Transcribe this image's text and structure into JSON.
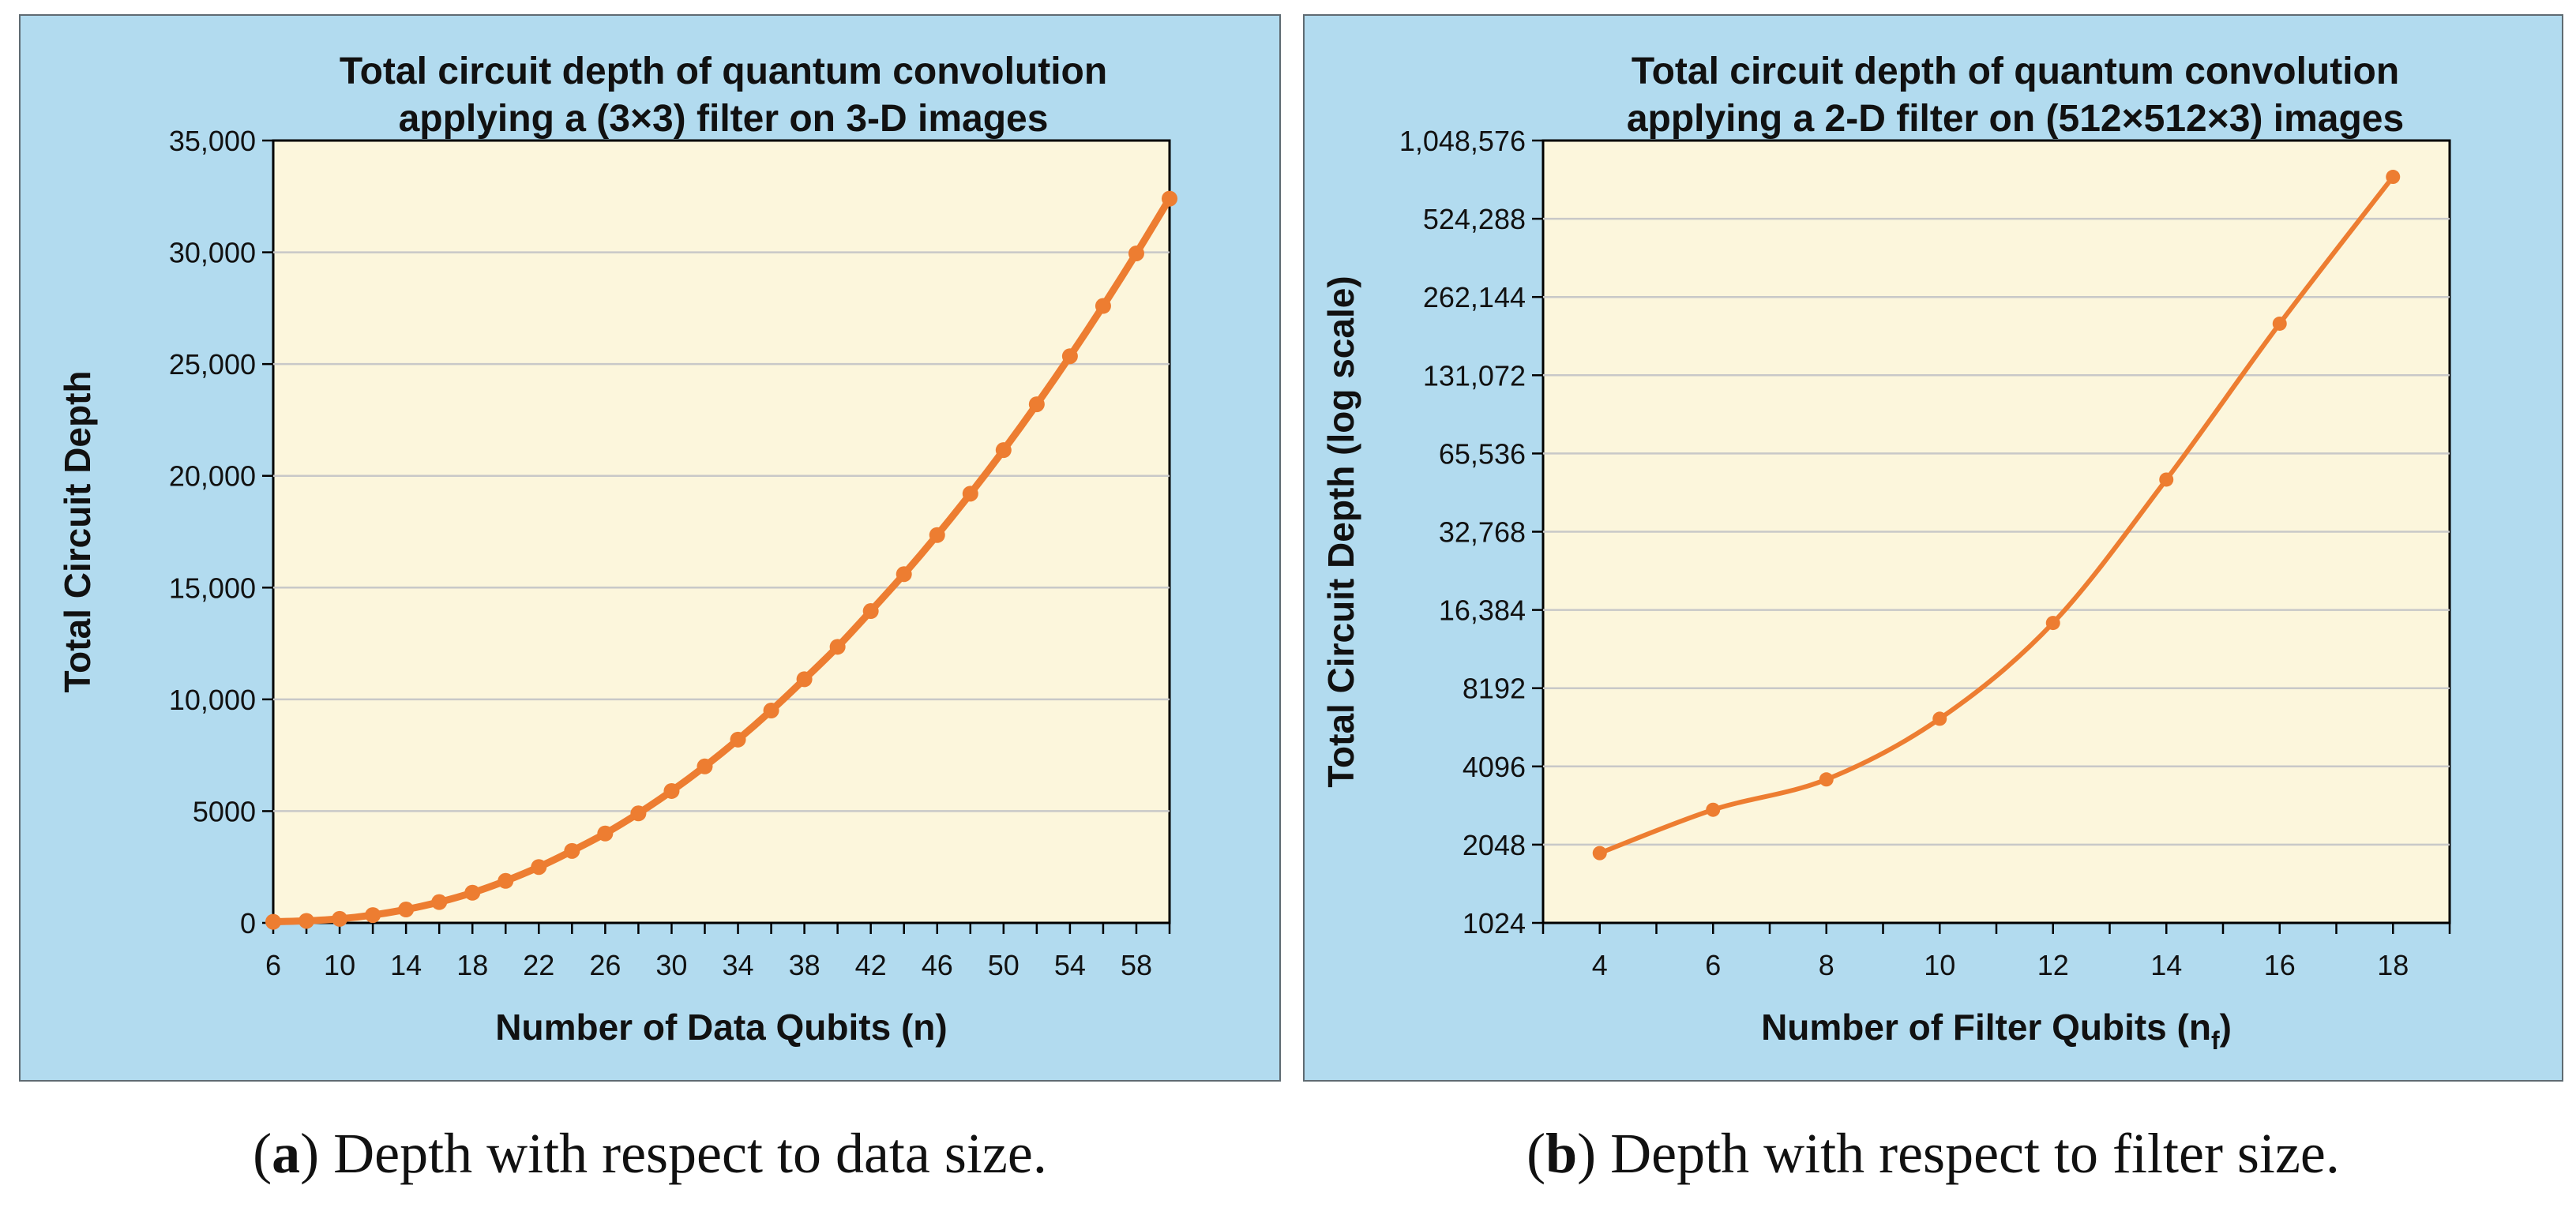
{
  "colors": {
    "line": "#ed7d31",
    "plot_bg": "#fcf6dc",
    "panel_bg": "#b2dbef",
    "grid": "#c8c8c8"
  },
  "chart_data": [
    {
      "type": "line",
      "title": [
        "Total circuit depth of quantum convolution",
        "applying a (3×3) filter on 3-D images"
      ],
      "xlabel": "Number of Data Qubits (n)",
      "ylabel": "Total Circuit Depth",
      "xlim": [
        6,
        60
      ],
      "ylim": [
        0,
        35000
      ],
      "xticks": [
        6,
        10,
        14,
        18,
        22,
        26,
        30,
        34,
        38,
        42,
        46,
        50,
        54,
        58
      ],
      "xtick_labels": [
        "6",
        "10",
        "14",
        "18",
        "22",
        "26",
        "30",
        "34",
        "38",
        "42",
        "46",
        "50",
        "54",
        "58"
      ],
      "yticks": [
        0,
        5000,
        10000,
        15000,
        20000,
        25000,
        30000,
        35000
      ],
      "ytick_labels": [
        "0",
        "5000",
        "10,000",
        "15,000",
        "20,000",
        "25,000",
        "30,000",
        "35,000"
      ],
      "grid": true,
      "series": [
        {
          "name": "Total circuit depth",
          "x": [
            6,
            8,
            10,
            12,
            14,
            16,
            18,
            20,
            22,
            24,
            26,
            28,
            30,
            32,
            34,
            36,
            38,
            40,
            42,
            44,
            46,
            48,
            50,
            52,
            54,
            56,
            58,
            60
          ],
          "y": [
            50,
            90,
            180,
            350,
            600,
            930,
            1350,
            1880,
            2500,
            3220,
            4000,
            4900,
            5900,
            7000,
            8200,
            9500,
            10900,
            12350,
            13950,
            15600,
            17350,
            19200,
            21150,
            23200,
            25350,
            27600,
            29950,
            32400
          ]
        }
      ]
    },
    {
      "type": "line",
      "title": [
        "Total circuit depth of quantum convolution",
        "applying a 2-D filter on (512×512×3) images"
      ],
      "xlabel": "Number of Filter Qubits (n",
      "xlabel_sub": "f",
      "xlabel_end": ")",
      "ylabel": "Total Circuit Depth (log scale)",
      "yscale": "log2",
      "xlim": [
        3,
        19
      ],
      "ylim": [
        1024,
        1048576
      ],
      "xticks": [
        4,
        6,
        8,
        10,
        12,
        14,
        16,
        18
      ],
      "xtick_labels": [
        "4",
        "6",
        "8",
        "10",
        "12",
        "14",
        "16",
        "18"
      ],
      "yticks": [
        1024,
        2048,
        4096,
        8192,
        16384,
        32768,
        65536,
        131072,
        262144,
        524288,
        1048576
      ],
      "ytick_labels": [
        "1024",
        "2048",
        "4096",
        "8192",
        "16,384",
        "32,768",
        "65,536",
        "131,072",
        "262,144",
        "524,288",
        "1,048,576"
      ],
      "grid": true,
      "series": [
        {
          "name": "Total circuit depth",
          "x": [
            4,
            6,
            8,
            10,
            12,
            14,
            16,
            18
          ],
          "y": [
            1900,
            2790,
            3650,
            6250,
            14600,
            52000,
            207000,
            760000
          ]
        }
      ]
    }
  ],
  "captions": [
    {
      "label": "a",
      "text": "Depth with respect to data size."
    },
    {
      "label": "b",
      "text": "Depth with respect to filter size."
    }
  ]
}
